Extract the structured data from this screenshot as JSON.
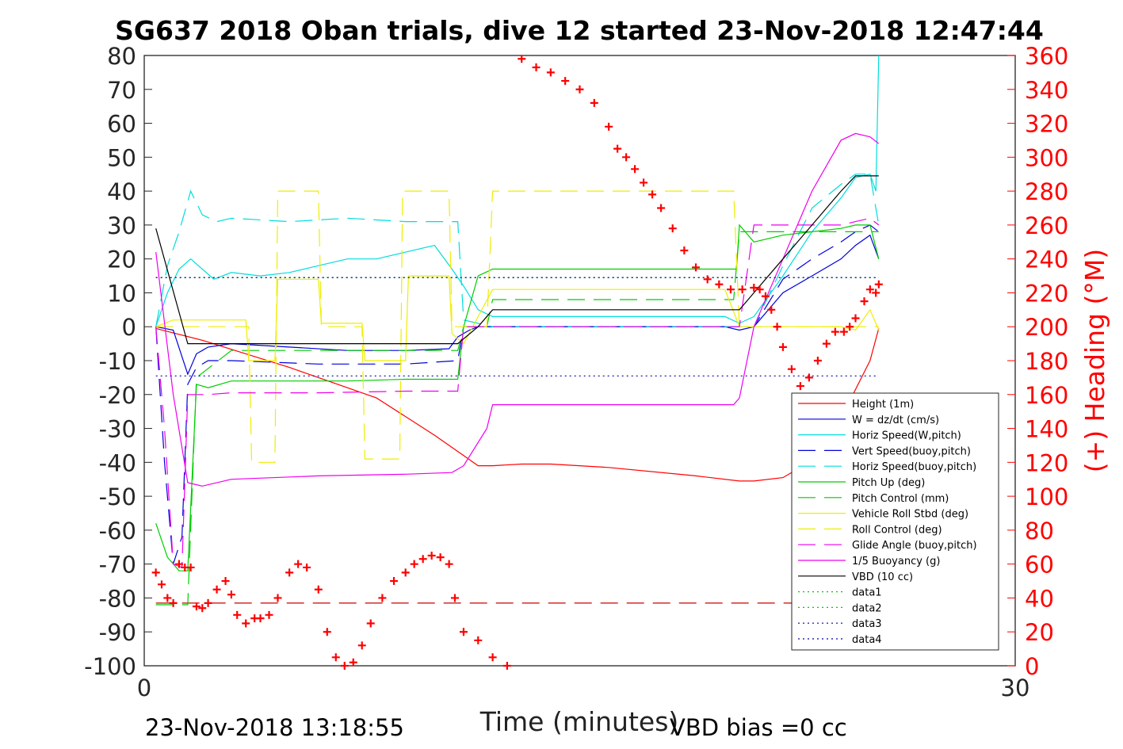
{
  "chart_data": {
    "type": "line",
    "title": "SG637 2018 Oban trials, dive 12 started 23-Nov-2018 12:47:44",
    "xlabel": "Time (minutes)",
    "ylabel_right": "(+) Heading (°M)",
    "xlim": [
      0,
      30
    ],
    "ylim": [
      -100,
      80
    ],
    "ylim_right": [
      0,
      360
    ],
    "x_ticks": [
      "0",
      "30"
    ],
    "y_ticks": [
      "80",
      "70",
      "60",
      "50",
      "40",
      "30",
      "20",
      "10",
      "0",
      "-10",
      "-20",
      "-30",
      "-40",
      "-50",
      "-60",
      "-70",
      "-80",
      "-90",
      "-100"
    ],
    "y_right_ticks": [
      "360",
      "340",
      "320",
      "300",
      "280",
      "260",
      "240",
      "220",
      "200",
      "180",
      "160",
      "140",
      "120",
      "100",
      "80",
      "60",
      "40",
      "20",
      "0"
    ],
    "footer_left": "23-Nov-2018 13:18:55",
    "footer_right": "VBD bias =0 cc",
    "legend_position": "bottom-right",
    "series": [
      {
        "name": "Height (1m)",
        "color": "#ff0000",
        "style": "solid",
        "x": [
          0.4,
          2.0,
          5.0,
          8.0,
          10.0,
          11.0,
          11.5,
          12.0,
          13.0,
          14.0,
          16.0,
          19.0,
          20.5,
          21.0,
          22.0,
          22.5,
          23.0,
          24.0,
          25.0,
          25.3
        ],
        "y": [
          -0.5,
          -4,
          -12,
          -21,
          -32,
          -38,
          -41,
          -41,
          -40.5,
          -40.5,
          -41.5,
          -44,
          -45.5,
          -45.5,
          -44.5,
          -42,
          -38,
          -27,
          -10,
          -0.5
        ]
      },
      {
        "name": "W = dz/dt (cm/s)",
        "color": "#0000dd",
        "style": "solid",
        "x": [
          0.4,
          1.0,
          1.5,
          1.8,
          2.2,
          3,
          5,
          7,
          9,
          10.5,
          10.8,
          11.2,
          11.5,
          12,
          14,
          16,
          18,
          20,
          20.5,
          21,
          22,
          23,
          24,
          24.5,
          25,
          25.3
        ],
        "y": [
          0,
          -1,
          -14,
          -8,
          -6,
          -5,
          -6,
          -7,
          -7,
          -6.5,
          -3,
          -1,
          0,
          0,
          0,
          0,
          0,
          0,
          -1,
          0,
          10,
          15,
          20,
          24,
          27,
          20
        ]
      },
      {
        "name": "Horiz Speed(W,pitch)",
        "color": "#00dddd",
        "style": "solid",
        "x": [
          0.4,
          0.8,
          1.2,
          1.6,
          2.0,
          2.4,
          3,
          4,
          5,
          6,
          7,
          8,
          9,
          10,
          10.6,
          11,
          11.5,
          12,
          14,
          16,
          18,
          20,
          20.5,
          21,
          22,
          23,
          24,
          24.5,
          25,
          25.2,
          25.3
        ],
        "y": [
          0,
          10,
          17,
          20,
          17,
          14,
          16,
          15,
          16,
          18,
          20,
          20,
          22,
          24,
          17,
          12,
          5,
          3,
          3,
          3,
          3,
          3,
          1,
          3,
          15,
          28,
          38,
          44,
          45,
          40,
          80
        ]
      },
      {
        "name": "Vert Speed(buoy,pitch)",
        "color": "#0000dd",
        "style": "dashed",
        "x": [
          0.4,
          0.7,
          1.0,
          1.3,
          1.5,
          1.8,
          2.2,
          3,
          6,
          9,
          10.8,
          11,
          12,
          14,
          16,
          18,
          20,
          20.5,
          21,
          22,
          23,
          24,
          24.5,
          25,
          25.3
        ],
        "y": [
          0,
          -40,
          -70,
          -62,
          -17,
          -12,
          -10,
          -10,
          -11,
          -11,
          -10,
          0,
          0,
          0,
          0,
          0,
          0,
          0,
          0,
          14,
          20,
          25,
          28,
          30,
          28
        ]
      },
      {
        "name": "Horiz Speed(buoy,pitch)",
        "color": "#00dddd",
        "style": "dashed",
        "x": [
          0.4,
          0.8,
          1.2,
          1.6,
          2.0,
          2.5,
          3,
          5,
          7,
          9,
          10.8,
          11,
          12,
          14,
          16,
          18,
          20,
          20.5,
          21,
          22,
          23,
          24,
          24.5,
          25,
          25.3
        ],
        "y": [
          0,
          18,
          28,
          40,
          33,
          31,
          32,
          31,
          32,
          31,
          31,
          2,
          0,
          0,
          0,
          0,
          0,
          0,
          0,
          18,
          35,
          42,
          45,
          45,
          30
        ]
      },
      {
        "name": "Pitch Up (deg)",
        "color": "#00cc00",
        "style": "solid",
        "x": [
          0.4,
          0.8,
          1.2,
          1.5,
          1.8,
          2.2,
          3,
          5,
          7,
          9,
          10.8,
          11,
          11.5,
          12,
          14,
          16,
          18,
          20.4,
          20.5,
          21,
          22,
          23,
          24,
          24.5,
          25,
          25.3
        ],
        "y": [
          -58,
          -68,
          -72,
          -72,
          -17,
          -18,
          -16,
          -16,
          -16,
          -15.5,
          -15.5,
          0,
          15,
          17,
          17,
          17,
          17,
          17,
          30,
          25,
          27,
          28,
          29,
          30,
          30,
          20
        ]
      },
      {
        "name": "Pitch Control (mm)",
        "color": "#00cc00",
        "style": "dashed",
        "x": [
          0.4,
          1.5,
          1.8,
          3,
          6,
          9,
          10.8,
          11,
          11.8,
          12,
          14,
          16,
          18,
          20.3,
          20.5,
          21,
          22,
          23,
          24,
          25,
          25.3
        ],
        "y": [
          -82,
          -82,
          -15,
          -7,
          -7,
          -7,
          -7,
          0,
          0,
          8,
          8,
          8,
          8,
          8,
          28,
          28,
          28,
          28,
          28,
          28,
          28
        ]
      },
      {
        "name": "Vehicle Roll Stbd (deg)",
        "color": "#eeee00",
        "style": "solid",
        "x": [
          0.4,
          1.0,
          1.5,
          2.0,
          3.5,
          3.6,
          4.5,
          4.6,
          6,
          6.1,
          7.5,
          7.6,
          9,
          9.1,
          10.5,
          10.6,
          11,
          12,
          14,
          16,
          18,
          20,
          20.5,
          21,
          22,
          23,
          23.5,
          24,
          24.5,
          25,
          25.3
        ],
        "y": [
          0,
          2,
          2,
          2,
          2,
          -10,
          -10,
          14,
          14,
          1,
          1,
          -10,
          -10,
          15,
          15,
          -2,
          -5,
          11,
          11,
          11,
          11,
          11,
          0,
          0,
          0,
          0,
          0,
          0,
          -1,
          5,
          -1
        ]
      },
      {
        "name": "Roll Control (deg)",
        "color": "#eeee00",
        "style": "dashed",
        "x": [
          0.4,
          3.6,
          3.7,
          4.5,
          4.6,
          6,
          6.1,
          7.5,
          7.6,
          8.8,
          8.9,
          10.5,
          10.6,
          11.5,
          11.8,
          12,
          20.3,
          20.5,
          25.3
        ],
        "y": [
          0,
          0,
          -40,
          -40,
          40,
          40,
          0,
          0,
          -39,
          -39,
          40,
          40,
          0,
          0,
          0,
          40,
          40,
          0,
          0
        ]
      },
      {
        "name": "Glide Angle (buoy,pitch)",
        "color": "#ee00ee",
        "style": "dashed",
        "x": [
          0.4,
          0.7,
          1.0,
          1.3,
          1.5,
          1.8,
          2.2,
          3,
          6,
          9,
          10.6,
          10.8,
          11,
          12,
          14,
          16,
          18,
          20.3,
          20.5,
          21,
          22,
          23,
          24,
          24.5,
          25,
          25.3
        ],
        "y": [
          0,
          -30,
          -70,
          -71,
          -20,
          -20,
          -20,
          -19.5,
          -19.5,
          -19,
          -19,
          -19,
          0,
          0,
          0,
          0,
          0,
          0,
          0,
          30,
          30,
          30,
          30,
          31,
          32,
          30
        ]
      },
      {
        "name": "1/5 Buoyancy (g)",
        "color": "#ee00ee",
        "style": "solid",
        "x": [
          0.4,
          1.0,
          1.5,
          2.0,
          3,
          6,
          9,
          10.6,
          11,
          11.8,
          12,
          14,
          16,
          18,
          20.3,
          20.5,
          21,
          22,
          23,
          24,
          24.5,
          25,
          25.3
        ],
        "y": [
          22,
          -20,
          -46,
          -47,
          -45,
          -44,
          -43.5,
          -43,
          -41,
          -30,
          -23,
          -23,
          -23,
          -23,
          -23,
          -21,
          0,
          20,
          40,
          55,
          57,
          56,
          54
        ]
      },
      {
        "name": "VBD (10 cc)",
        "color": "#000000",
        "style": "solid",
        "x": [
          0.4,
          1.5,
          2.0,
          3,
          6,
          9,
          10.8,
          11.5,
          12,
          14,
          16,
          18,
          20.3,
          20.5,
          21,
          22,
          23,
          24,
          24.5,
          25.3
        ],
        "y": [
          29,
          -5,
          -5,
          -5,
          -5,
          -5,
          -5,
          0,
          5,
          5,
          5,
          5,
          5,
          5,
          10,
          20,
          30,
          40,
          44.5,
          44.5
        ]
      },
      {
        "name": "data1",
        "color": "#00cc00",
        "style": "dotted",
        "x": [
          0.4,
          25.3
        ],
        "y": [
          14.5,
          14.5
        ]
      },
      {
        "name": "data2",
        "color": "#00cc00",
        "style": "dotted",
        "x": [
          0.4,
          25.3
        ],
        "y": [
          14.5,
          14.5
        ]
      },
      {
        "name": "data3",
        "color": "#0000aa",
        "style": "dotted",
        "x": [
          0.4,
          25.3
        ],
        "y": [
          14.5,
          14.5
        ]
      },
      {
        "name": "data4",
        "color": "#0000aa",
        "style": "dotted",
        "x": [
          0.4,
          25.3
        ],
        "y": [
          -14.5,
          -14.5
        ]
      }
    ],
    "extra_lines": [
      {
        "color": "#cc0000",
        "style": "dashed",
        "x": [
          0.4,
          25.3
        ],
        "y": [
          -81.5,
          -81.5
        ]
      }
    ],
    "heading_series": {
      "color": "#ff0000",
      "marker": "+",
      "x": [
        0.4,
        0.6,
        0.8,
        1.0,
        1.2,
        1.4,
        1.6,
        1.8,
        2.0,
        2.2,
        2.5,
        2.8,
        3.0,
        3.2,
        3.5,
        3.8,
        4.0,
        4.3,
        4.6,
        5.0,
        5.3,
        5.6,
        6.0,
        6.3,
        6.6,
        6.9,
        7.2,
        7.5,
        7.8,
        8.2,
        8.6,
        9.0,
        9.3,
        9.6,
        9.9,
        10.2,
        10.5,
        10.7,
        11.0,
        11.5,
        12.0,
        12.5,
        13.0,
        13.5,
        14.0,
        14.5,
        15.0,
        15.5,
        16.0,
        16.3,
        16.6,
        16.9,
        17.2,
        17.5,
        17.8,
        18.2,
        18.6,
        19.0,
        19.4,
        19.8,
        20.2,
        20.6,
        21.0,
        21.2,
        21.4,
        21.6,
        21.8,
        22.0,
        22.3,
        22.6,
        22.9,
        23.2,
        23.5,
        23.8,
        24.1,
        24.3,
        24.5,
        24.8,
        25.0,
        25.2,
        25.3
      ],
      "y": [
        55,
        48,
        40,
        37,
        60,
        58,
        58,
        35,
        34,
        37,
        45,
        50,
        42,
        30,
        25,
        28,
        28,
        30,
        40,
        55,
        60,
        58,
        45,
        20,
        5,
        0,
        2,
        12,
        25,
        40,
        50,
        55,
        60,
        63,
        65,
        64,
        60,
        40,
        20,
        15,
        5,
        0,
        358,
        353,
        350,
        345,
        340,
        332,
        318,
        305,
        300,
        293,
        285,
        278,
        270,
        258,
        245,
        235,
        228,
        225,
        222,
        222,
        223,
        222,
        218,
        210,
        200,
        188,
        175,
        165,
        170,
        180,
        190,
        197,
        197,
        200,
        205,
        215,
        222,
        220,
        225
      ]
    }
  }
}
